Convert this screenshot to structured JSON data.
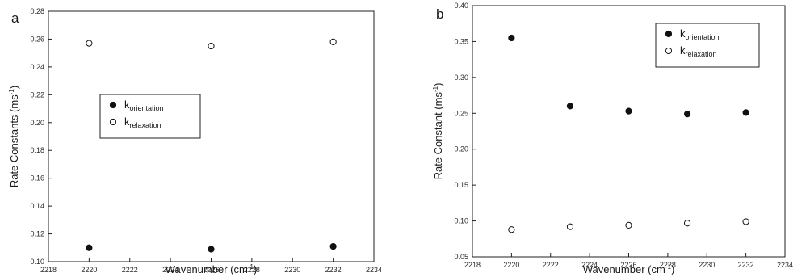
{
  "chart_data": [
    {
      "type": "scatter",
      "panel_label": "a",
      "xlabel": "Wavenumber (cm",
      "xlabel_sup": "-1",
      "xlabel_end": ")",
      "ylabel": "Rate Constants (ms",
      "ylabel_sup": "-1",
      "ylabel_end": ")",
      "xlim": [
        2218,
        2234
      ],
      "ylim": [
        0.1,
        0.28
      ],
      "xticks": [
        2218,
        2220,
        2222,
        2224,
        2226,
        2228,
        2230,
        2232,
        2234
      ],
      "yticks": [
        0.1,
        0.12,
        0.14,
        0.16,
        0.18,
        0.2,
        0.22,
        0.24,
        0.26,
        0.28
      ],
      "ytick_decimals": 2,
      "grid": false,
      "legend_position": "middle-left",
      "series": [
        {
          "name": "k",
          "name_sub": "orientation",
          "marker": "filled",
          "x": [
            2220,
            2226,
            2232
          ],
          "values": [
            0.11,
            0.109,
            0.111
          ]
        },
        {
          "name": "k",
          "name_sub": "relaxation",
          "marker": "open",
          "x": [
            2220,
            2226,
            2232
          ],
          "values": [
            0.257,
            0.255,
            0.258
          ]
        }
      ]
    },
    {
      "type": "scatter",
      "panel_label": "b",
      "xlabel": "Wavenumber (cm",
      "xlabel_sup": "-1",
      "xlabel_end": ")",
      "ylabel": "Rate Constant (ms",
      "ylabel_sup": "-1",
      "ylabel_end": ")",
      "xlim": [
        2218,
        2234
      ],
      "ylim": [
        0.05,
        0.4
      ],
      "xticks": [
        2218,
        2220,
        2222,
        2224,
        2226,
        2228,
        2230,
        2232,
        2234
      ],
      "yticks": [
        0.05,
        0.1,
        0.15,
        0.2,
        0.25,
        0.3,
        0.35,
        0.4
      ],
      "ytick_decimals": 2,
      "grid": false,
      "legend_position": "top-right",
      "series": [
        {
          "name": "k",
          "name_sub": "orientation",
          "marker": "filled",
          "x": [
            2220,
            2223,
            2226,
            2229,
            2232
          ],
          "values": [
            0.355,
            0.26,
            0.253,
            0.249,
            0.251
          ]
        },
        {
          "name": "k",
          "name_sub": "relaxation",
          "marker": "open",
          "x": [
            2220,
            2223,
            2226,
            2229,
            2232
          ],
          "values": [
            0.088,
            0.092,
            0.094,
            0.097,
            0.099
          ]
        }
      ]
    }
  ]
}
